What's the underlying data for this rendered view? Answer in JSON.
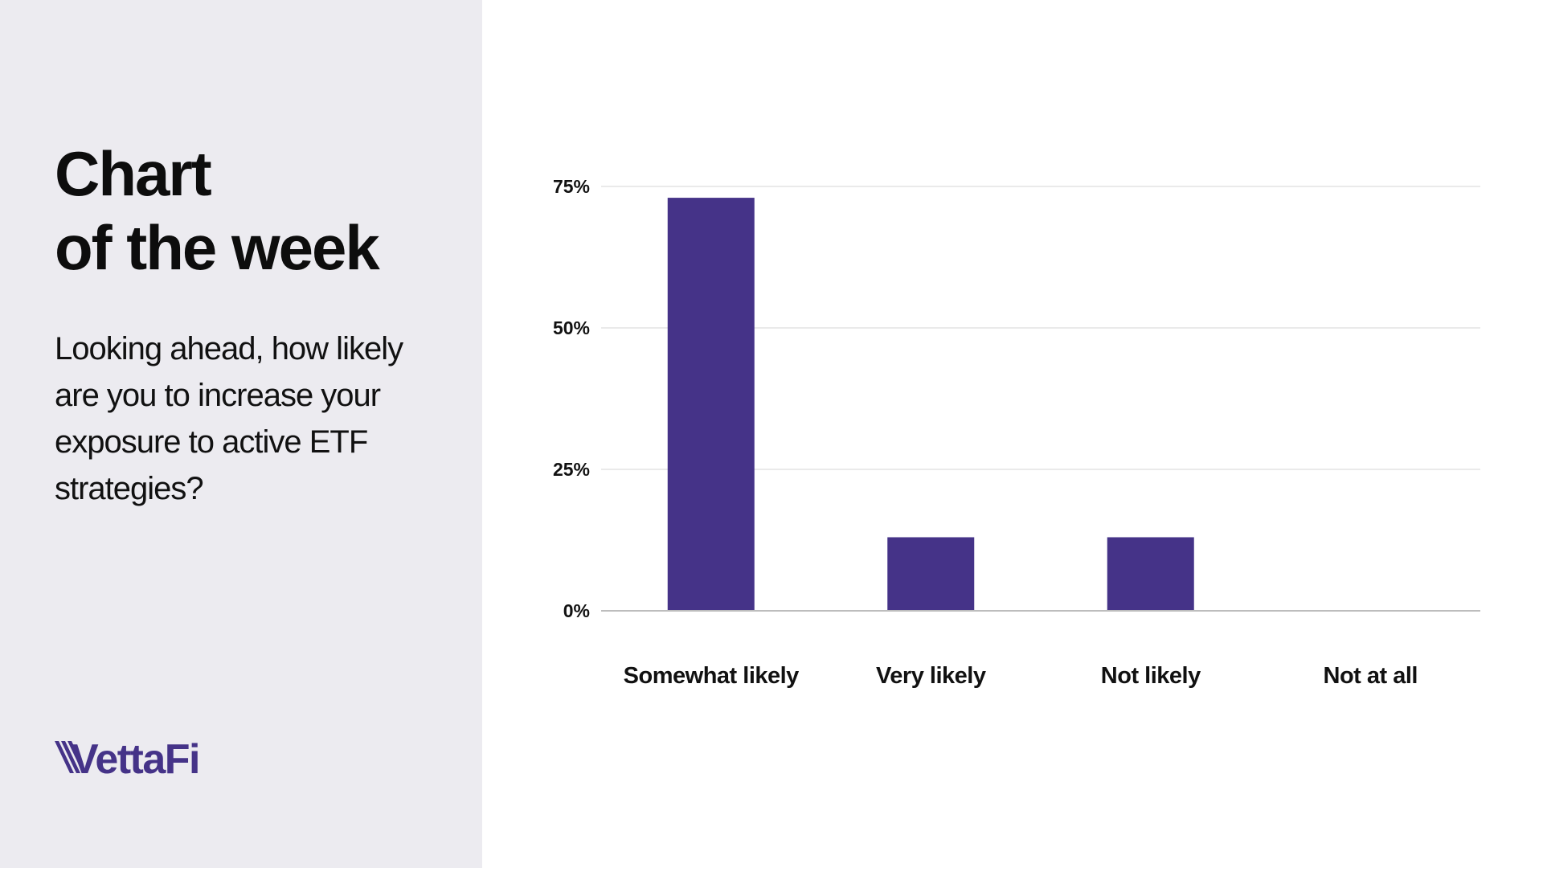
{
  "sidebar": {
    "title_lines": [
      "Chart",
      "of the week"
    ],
    "question": "Looking ahead, how likely are you to increase your exposure to active ETF strategies?",
    "logo_text": "VettaFi"
  },
  "colors": {
    "sidebar_bg": "#ecebf0",
    "bar": "#453388",
    "logo": "#453388",
    "grid": "#e3e3e3",
    "axis": "#bdbdbd"
  },
  "chart_data": {
    "type": "bar",
    "title": "",
    "xlabel": "",
    "ylabel": "",
    "categories": [
      "Somewhat likely",
      "Very likely",
      "Not likely",
      "Not at all"
    ],
    "values": [
      73,
      13,
      13,
      0
    ],
    "ylim": [
      0,
      75
    ],
    "yticks": [
      0,
      25,
      50,
      75
    ],
    "ytick_labels": [
      "0%",
      "25%",
      "50%",
      "75%"
    ],
    "grid": true,
    "legend": "none"
  }
}
